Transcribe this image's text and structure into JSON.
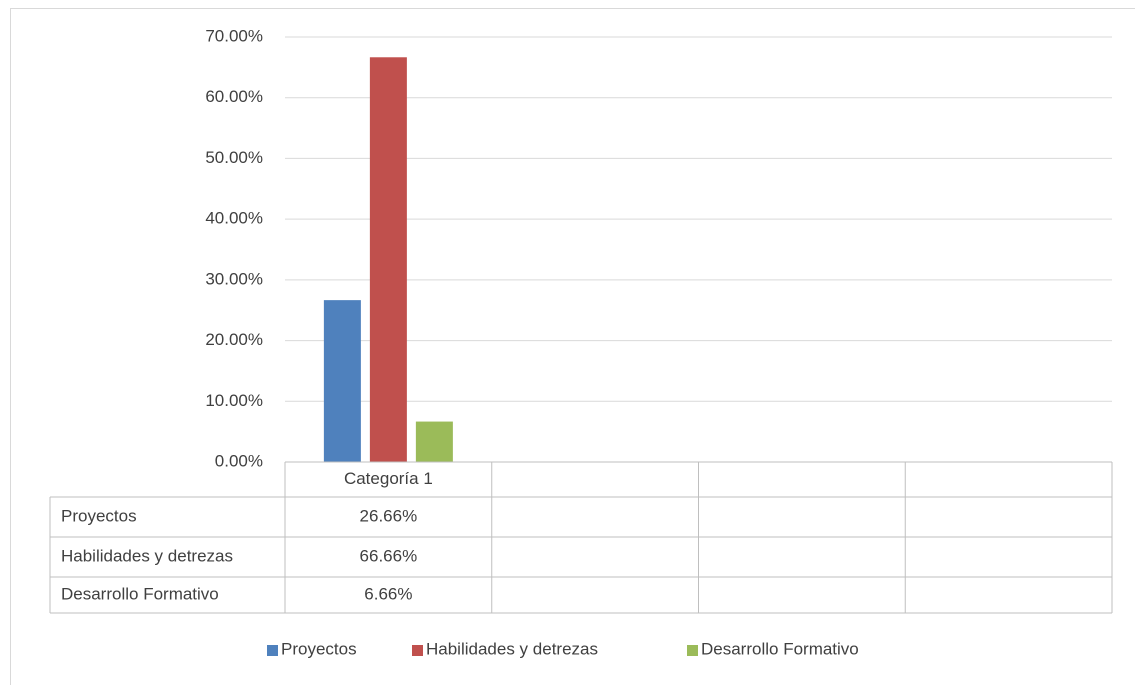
{
  "chart_data": {
    "type": "bar",
    "categories": [
      "Categoría 1",
      null,
      null,
      null
    ],
    "series": [
      {
        "name": "Proyectos",
        "color": "#4f81bd",
        "values": [
          26.66,
          null,
          null,
          null
        ],
        "value_labels": [
          "26.66%",
          null,
          null,
          null
        ]
      },
      {
        "name": "Habilidades y detrezas",
        "color": "#c0504d",
        "values": [
          66.66,
          null,
          null,
          null
        ],
        "value_labels": [
          "66.66%",
          null,
          null,
          null
        ]
      },
      {
        "name": "Desarrollo Formativo",
        "color": "#9bbb59",
        "values": [
          6.66,
          null,
          null,
          null
        ],
        "value_labels": [
          "6.66%",
          null,
          null,
          null
        ]
      }
    ],
    "ylim": [
      0,
      70
    ],
    "yticks": [
      {
        "value": 0,
        "label": "0.00%"
      },
      {
        "value": 10,
        "label": "10.00%"
      },
      {
        "value": 20,
        "label": "20.00%"
      },
      {
        "value": 30,
        "label": "30.00%"
      },
      {
        "value": 40,
        "label": "40.00%"
      },
      {
        "value": 50,
        "label": "50.00%"
      },
      {
        "value": 60,
        "label": "60.00%"
      },
      {
        "value": 70,
        "label": "70.00%"
      }
    ],
    "grid": true,
    "data_table": true,
    "legend": "bottom"
  }
}
